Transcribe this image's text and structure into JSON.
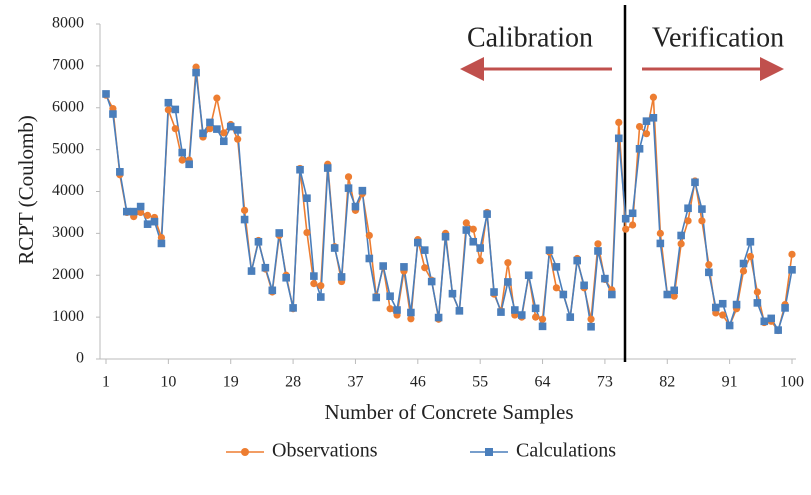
{
  "chart_data": {
    "type": "line",
    "xlabel": "Number of Concrete Samples",
    "ylabel": "RCPT (Coulomb)",
    "annotations": [
      "Calibration",
      "Verification"
    ],
    "x": [
      1,
      2,
      3,
      4,
      5,
      6,
      7,
      8,
      9,
      10,
      11,
      12,
      13,
      14,
      15,
      16,
      17,
      18,
      19,
      20,
      21,
      22,
      23,
      24,
      25,
      26,
      27,
      28,
      29,
      30,
      31,
      32,
      33,
      34,
      35,
      36,
      37,
      38,
      39,
      40,
      41,
      42,
      43,
      44,
      45,
      46,
      47,
      48,
      49,
      50,
      51,
      52,
      53,
      54,
      55,
      56,
      57,
      58,
      59,
      60,
      61,
      62,
      63,
      64,
      65,
      66,
      67,
      68,
      69,
      70,
      71,
      72,
      73,
      74,
      75,
      76,
      77,
      78,
      79,
      80,
      81,
      82,
      83,
      84,
      85,
      86,
      87,
      88,
      89,
      90,
      91,
      92,
      93,
      94,
      95,
      96,
      97,
      98,
      99,
      100
    ],
    "series": [
      {
        "name": "Observations",
        "color": "#ED7D31",
        "marker": "circle",
        "values": [
          6300,
          5980,
          4400,
          3500,
          3400,
          3500,
          3430,
          3380,
          2900,
          5950,
          5500,
          4750,
          4750,
          6970,
          5300,
          5500,
          6230,
          5400,
          5600,
          5250,
          3550,
          2100,
          2830,
          2150,
          1600,
          2950,
          2000,
          1200,
          4550,
          3020,
          1800,
          1750,
          4650,
          2680,
          1850,
          4350,
          3550,
          3950,
          2950,
          1500,
          2200,
          1200,
          1050,
          2100,
          960,
          2850,
          2180,
          1880,
          950,
          3000,
          1550,
          1150,
          3250,
          3100,
          2350,
          3500,
          1550,
          1150,
          2300,
          1050,
          1000,
          2000,
          1000,
          950,
          2550,
          1700,
          1550,
          1000,
          2400,
          1700,
          950,
          2750,
          1900,
          1650,
          5650,
          3100,
          3200,
          5550,
          5380,
          6250,
          3000,
          1550,
          1500,
          2750,
          3300,
          4250,
          3300,
          2250,
          1100,
          1050,
          800,
          1200,
          2100,
          2450,
          1600,
          870,
          900,
          680,
          1300,
          2500
        ]
      },
      {
        "name": "Calculations",
        "color": "#4A7EBB",
        "marker": "square",
        "values": [
          6330,
          5850,
          4470,
          3520,
          3520,
          3640,
          3220,
          3280,
          2760,
          6120,
          5960,
          4930,
          4650,
          6840,
          5390,
          5650,
          5490,
          5200,
          5550,
          5470,
          3330,
          2100,
          2800,
          2180,
          1640,
          3010,
          1940,
          1220,
          4520,
          3840,
          1980,
          1480,
          4560,
          2650,
          1960,
          4080,
          3640,
          4020,
          2400,
          1470,
          2220,
          1500,
          1170,
          2200,
          1110,
          2780,
          2600,
          1850,
          990,
          2920,
          1560,
          1150,
          3080,
          2800,
          2650,
          3460,
          1600,
          1120,
          1840,
          1170,
          1050,
          2000,
          1210,
          780,
          2600,
          2200,
          1540,
          1000,
          2350,
          1760,
          770,
          2580,
          1920,
          1540,
          5270,
          3350,
          3480,
          5020,
          5680,
          5760,
          2760,
          1540,
          1640,
          2950,
          3600,
          4220,
          3580,
          2070,
          1230,
          1320,
          800,
          1300,
          2280,
          2800,
          1340,
          900,
          970,
          690,
          1220,
          2130
        ]
      }
    ],
    "xlim": [
      1,
      100
    ],
    "xticks": [
      1,
      10,
      19,
      28,
      37,
      46,
      55,
      64,
      73,
      82,
      91,
      100
    ],
    "ylim": [
      0,
      8000
    ],
    "yticks": [
      0,
      1000,
      2000,
      3000,
      4000,
      5000,
      6000,
      7000,
      8000
    ],
    "legend": "bottom"
  }
}
